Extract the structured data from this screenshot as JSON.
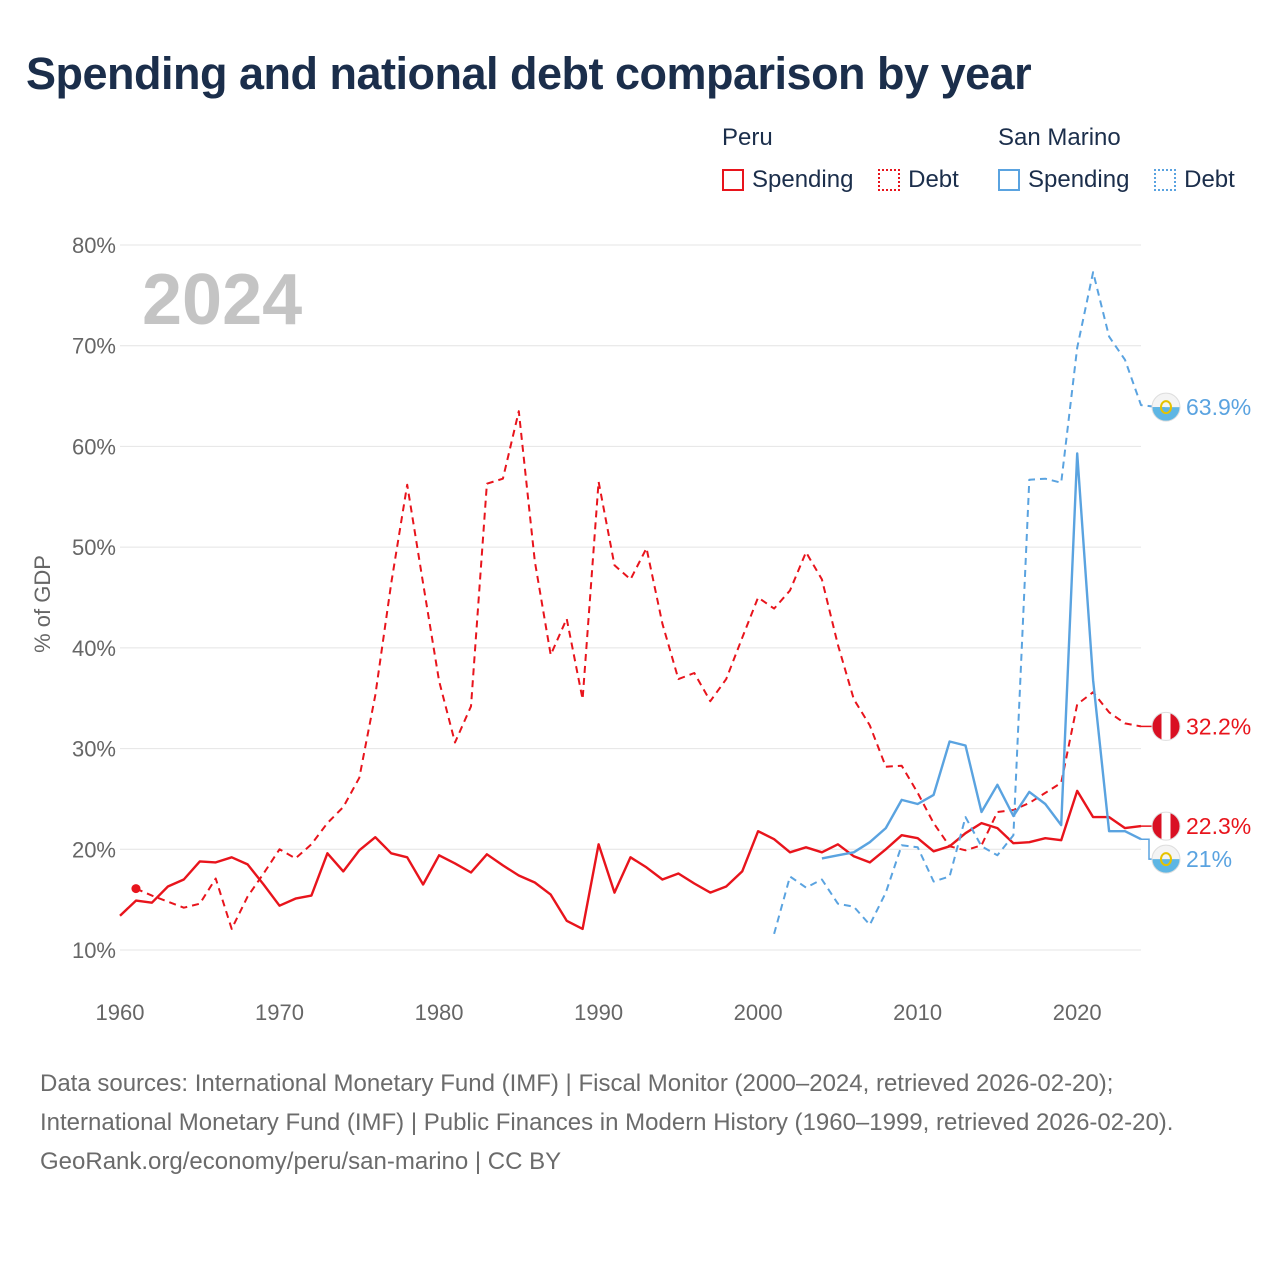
{
  "title": "Spending and national debt comparison by year",
  "year_watermark": "2024",
  "legend": {
    "groups": [
      {
        "name": "Peru",
        "items": [
          {
            "label": "Spending",
            "style": "solid",
            "color": "#e8141c"
          },
          {
            "label": "Debt",
            "style": "dotted",
            "color": "#e8141c"
          }
        ]
      },
      {
        "name": "San Marino",
        "items": [
          {
            "label": "Spending",
            "style": "solid",
            "color": "#5aa3e0"
          },
          {
            "label": "Debt",
            "style": "dotted",
            "color": "#5aa3e0"
          }
        ]
      }
    ]
  },
  "chart_data": {
    "type": "line",
    "title": "Spending and national debt comparison by year",
    "xlabel": "",
    "ylabel": "% of GDP",
    "xlim": [
      1960,
      2024
    ],
    "ylim": [
      10,
      80
    ],
    "x_ticks": [
      1960,
      1970,
      1980,
      1990,
      2000,
      2010,
      2020
    ],
    "y_ticks": [
      10,
      20,
      30,
      40,
      50,
      60,
      70,
      80
    ],
    "y_tick_labels": [
      "10%",
      "20%",
      "30%",
      "40%",
      "50%",
      "60%",
      "70%",
      "80%"
    ],
    "grid": true,
    "series": [
      {
        "name": "Peru Spending",
        "color": "#e8141c",
        "dash": "solid",
        "start_year": 1960,
        "values": [
          13.4,
          14.9,
          14.7,
          16.3,
          17.0,
          18.8,
          18.7,
          19.2,
          18.5,
          16.5,
          14.4,
          15.1,
          15.4,
          19.6,
          17.8,
          19.9,
          21.2,
          19.6,
          19.2,
          16.5,
          19.4,
          18.6,
          17.7,
          19.5,
          18.4,
          17.4,
          16.7,
          15.5,
          12.9,
          12.1,
          20.5,
          15.7,
          19.2,
          18.2,
          17.0,
          17.6,
          16.6,
          15.7,
          16.3,
          17.8,
          21.8,
          21.0,
          19.7,
          20.2,
          19.7,
          20.5,
          19.3,
          18.7,
          20.0,
          21.4,
          21.1,
          19.8,
          20.3,
          21.6,
          22.6,
          22.1,
          20.6,
          20.7,
          21.1,
          20.9,
          25.8,
          23.2,
          23.2,
          22.1,
          22.3
        ],
        "end_label": "22.3%"
      },
      {
        "name": "Peru Debt",
        "color": "#e8141c",
        "dash": "dashed",
        "start_year": 1961,
        "values": [
          16.1,
          15.4,
          14.8,
          14.2,
          14.6,
          17.1,
          12.1,
          15.3,
          17.6,
          20.0,
          19.1,
          20.5,
          22.6,
          24.2,
          27.1,
          35.3,
          46.4,
          56.2,
          46.4,
          36.7,
          30.6,
          34.2,
          56.3,
          56.8,
          63.5,
          48.6,
          39.3,
          42.9,
          34.9,
          56.5,
          48.2,
          46.8,
          49.9,
          42.4,
          36.9,
          37.5,
          34.7,
          36.9,
          41.0,
          45.0,
          43.9,
          45.7,
          49.5,
          46.8,
          40.3,
          34.9,
          32.3,
          28.2,
          28.3,
          25.6,
          22.6,
          20.3,
          19.9,
          20.4,
          23.7,
          23.9,
          24.6,
          25.6,
          26.6,
          34.4,
          35.6,
          33.6,
          32.5,
          32.2
        ],
        "end_label": "32.2%"
      },
      {
        "name": "San Marino Spending",
        "color": "#5aa3e0",
        "dash": "solid",
        "start_year": 2004,
        "values": [
          19.1,
          19.4,
          19.7,
          20.7,
          22.1,
          24.9,
          24.5,
          25.4,
          30.7,
          30.3,
          23.7,
          26.4,
          23.3,
          25.7,
          24.5,
          22.4,
          59.3,
          36.8,
          21.8,
          21.8,
          21.0
        ],
        "end_label": "21%"
      },
      {
        "name": "San Marino Debt",
        "color": "#5aa3e0",
        "dash": "dashed",
        "start_year": 2001,
        "values": [
          11.6,
          17.3,
          16.2,
          17.0,
          14.6,
          14.3,
          12.5,
          15.7,
          20.4,
          20.2,
          16.8,
          17.3,
          23.2,
          20.3,
          19.4,
          21.4,
          56.7,
          56.8,
          56.4,
          69.8,
          77.3,
          70.9,
          68.6,
          64.1,
          63.9
        ],
        "end_label": "63.9%"
      }
    ]
  },
  "sources": {
    "line1": "Data sources: International Monetary Fund (IMF) | Fiscal Monitor (2000–2024, retrieved 2026-02-20); International Monetary Fund (IMF) | Public Finances in Modern History (1960–1999, retrieved 2026-02-20).",
    "line2": "GeoRank.org/economy/peru/san-marino | CC BY"
  }
}
